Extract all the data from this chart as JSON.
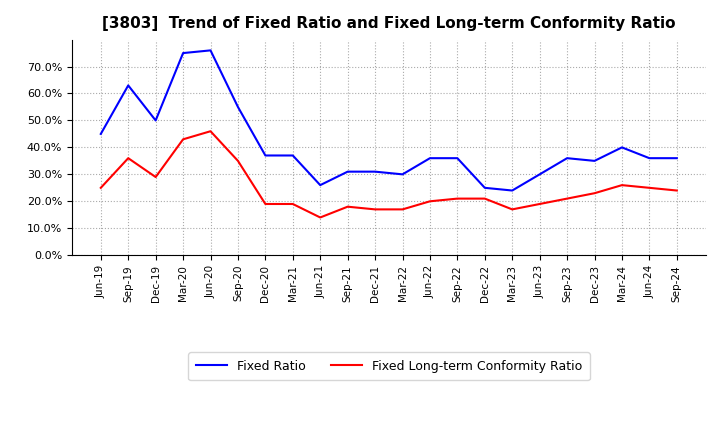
{
  "title": "[3803]  Trend of Fixed Ratio and Fixed Long-term Conformity Ratio",
  "x_labels": [
    "Jun-19",
    "Sep-19",
    "Dec-19",
    "Mar-20",
    "Jun-20",
    "Sep-20",
    "Dec-20",
    "Mar-21",
    "Jun-21",
    "Sep-21",
    "Dec-21",
    "Mar-22",
    "Jun-22",
    "Sep-22",
    "Dec-22",
    "Mar-23",
    "Jun-23",
    "Sep-23",
    "Dec-23",
    "Mar-24",
    "Jun-24",
    "Sep-24"
  ],
  "fixed_ratio": [
    0.45,
    0.63,
    0.5,
    0.75,
    0.76,
    0.55,
    0.37,
    0.37,
    0.26,
    0.31,
    0.31,
    0.3,
    0.36,
    0.36,
    0.25,
    0.24,
    0.3,
    0.36,
    0.35,
    0.4,
    0.36,
    0.36
  ],
  "fixed_lt_ratio": [
    0.25,
    0.36,
    0.29,
    0.43,
    0.46,
    0.35,
    0.19,
    0.19,
    0.14,
    0.18,
    0.17,
    0.17,
    0.2,
    0.21,
    0.21,
    0.17,
    0.19,
    0.21,
    0.23,
    0.26,
    0.25,
    0.24
  ],
  "fixed_ratio_color": "#0000ff",
  "fixed_lt_ratio_color": "#ff0000",
  "ylim": [
    0.0,
    0.8
  ],
  "yticks": [
    0.0,
    0.1,
    0.2,
    0.3,
    0.4,
    0.5,
    0.6,
    0.7
  ],
  "background_color": "#ffffff",
  "grid_color": "#aaaaaa",
  "legend_fixed": "Fixed Ratio",
  "legend_lt": "Fixed Long-term Conformity Ratio"
}
